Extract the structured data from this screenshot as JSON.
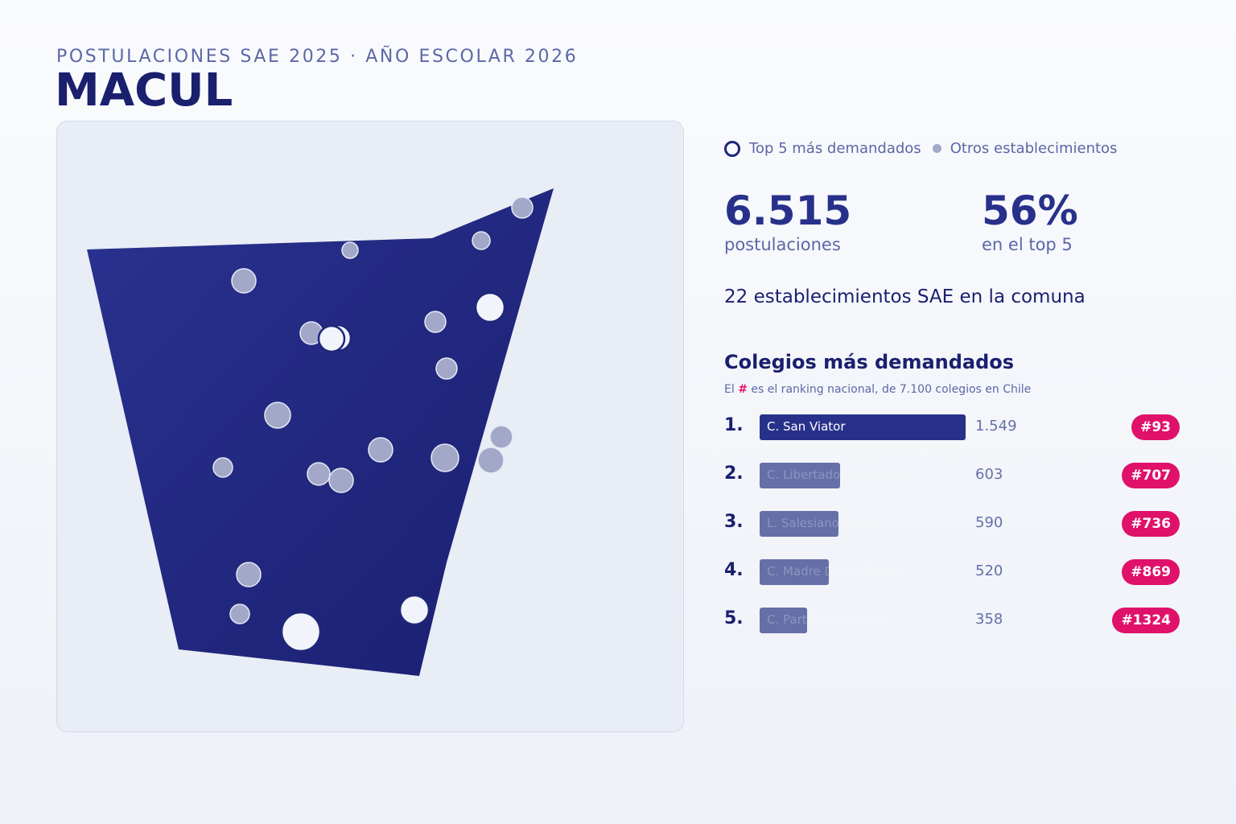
{
  "header": {
    "subtitle": "POSTULACIONES SAE 2025 · AÑO ESCOLAR 2026",
    "title": "MACUL"
  },
  "legend": {
    "top5": "Top 5 más demandados",
    "others": "Otros establecimientos"
  },
  "stats": {
    "applications_value": "6.515",
    "applications_label": "postulaciones",
    "top5_share_value": "56%",
    "top5_share_label": "en el top 5"
  },
  "schools_count_text": "22 establecimientos SAE en la comuna",
  "ranking": {
    "title": "Colegios más demandados",
    "note_prefix": "El ",
    "note_hash": "#",
    "note_suffix": " es el ranking nacional, de 7.100 colegios en Chile",
    "max_value": 1549,
    "items": [
      {
        "pos": "1.",
        "name": "C. San Viator",
        "value": 1549,
        "value_label": "1.549",
        "rank": "#93"
      },
      {
        "pos": "2.",
        "name": "C. Libertador Simon Bo",
        "value": 603,
        "value_label": "603",
        "rank": "#707"
      },
      {
        "pos": "3.",
        "name": "L. Salesiano Camilo Or",
        "value": 590,
        "value_label": "590",
        "rank": "#736"
      },
      {
        "pos": "4.",
        "name": "C. Madre De La Divina",
        "value": 520,
        "value_label": "520",
        "rank": "#869"
      },
      {
        "pos": "5.",
        "name": "C. Particular El Alba",
        "value": 358,
        "value_label": "358",
        "rank": "#1324"
      }
    ]
  },
  "colors": {
    "region": "#1e2778",
    "top5_dot": "#f2f4fb",
    "other_dot": "#a3a8c9",
    "badge": "#e0116a"
  }
}
